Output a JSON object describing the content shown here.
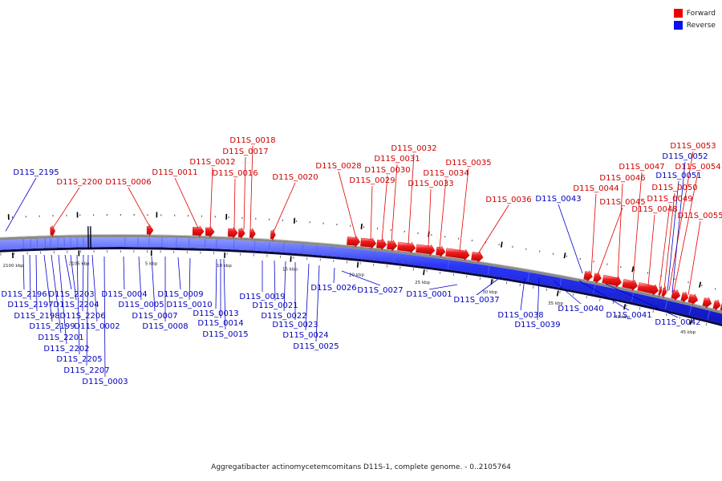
{
  "caption": "Aggregatibacter actinomycetemcomitans D11S-1, complete genome. - 0..2105764",
  "legend": [
    {
      "label": "Forward",
      "color": "#ee0000"
    },
    {
      "label": "Reverse",
      "color": "#1010ee"
    }
  ],
  "scale_ticks": [
    "2100 kbp",
    "2105 kbp",
    "5 kbp",
    "10 kbp",
    "15 kbp",
    "20 kbp",
    "25 kbp",
    "30 kbp",
    "35 kbp",
    "40 kbp",
    "45 kbp"
  ],
  "forward_genes": [
    "D11S_2200",
    "D11S_0006",
    "D11S_0011",
    "D11S_0012",
    "D11S_0016",
    "D11S_0017",
    "D11S_0018",
    "D11S_0020",
    "D11S_0028",
    "D11S_0029",
    "D11S_0030",
    "D11S_0031",
    "D11S_0032",
    "D11S_0033",
    "D11S_0034",
    "D11S_0035",
    "D11S_0036",
    "D11S_0044",
    "D11S_0045",
    "D11S_0046",
    "D11S_0047",
    "D11S_0048",
    "D11S_0049",
    "D11S_0050",
    "D11S_0053",
    "D11S_0054",
    "D11S_0055"
  ],
  "reverse_genes": [
    "D11S_2195",
    "D11S_2196",
    "D11S_2197",
    "D11S_2198",
    "D11S_2199",
    "D11S_2201",
    "D11S_2202",
    "D11S_2203",
    "D11S_2204",
    "D11S_2205",
    "D11S_2206",
    "D11S_2207",
    "D11S_0002",
    "D11S_0003",
    "D11S_0004",
    "D11S_0005",
    "D11S_0007",
    "D11S_0008",
    "D11S_0009",
    "D11S_0010",
    "D11S_0013",
    "D11S_0014",
    "D11S_0015",
    "D11S_0019",
    "D11S_0021",
    "D11S_0022",
    "D11S_0023",
    "D11S_0024",
    "D11S_0025",
    "D11S_0026",
    "D11S_0027",
    "D11S_0001",
    "D11S_0037",
    "D11S_0038",
    "D11S_0039",
    "D11S_0040",
    "D11S_0041",
    "D11S_0042",
    "D11S_0043",
    "D11S_0051",
    "D11S_0052"
  ]
}
